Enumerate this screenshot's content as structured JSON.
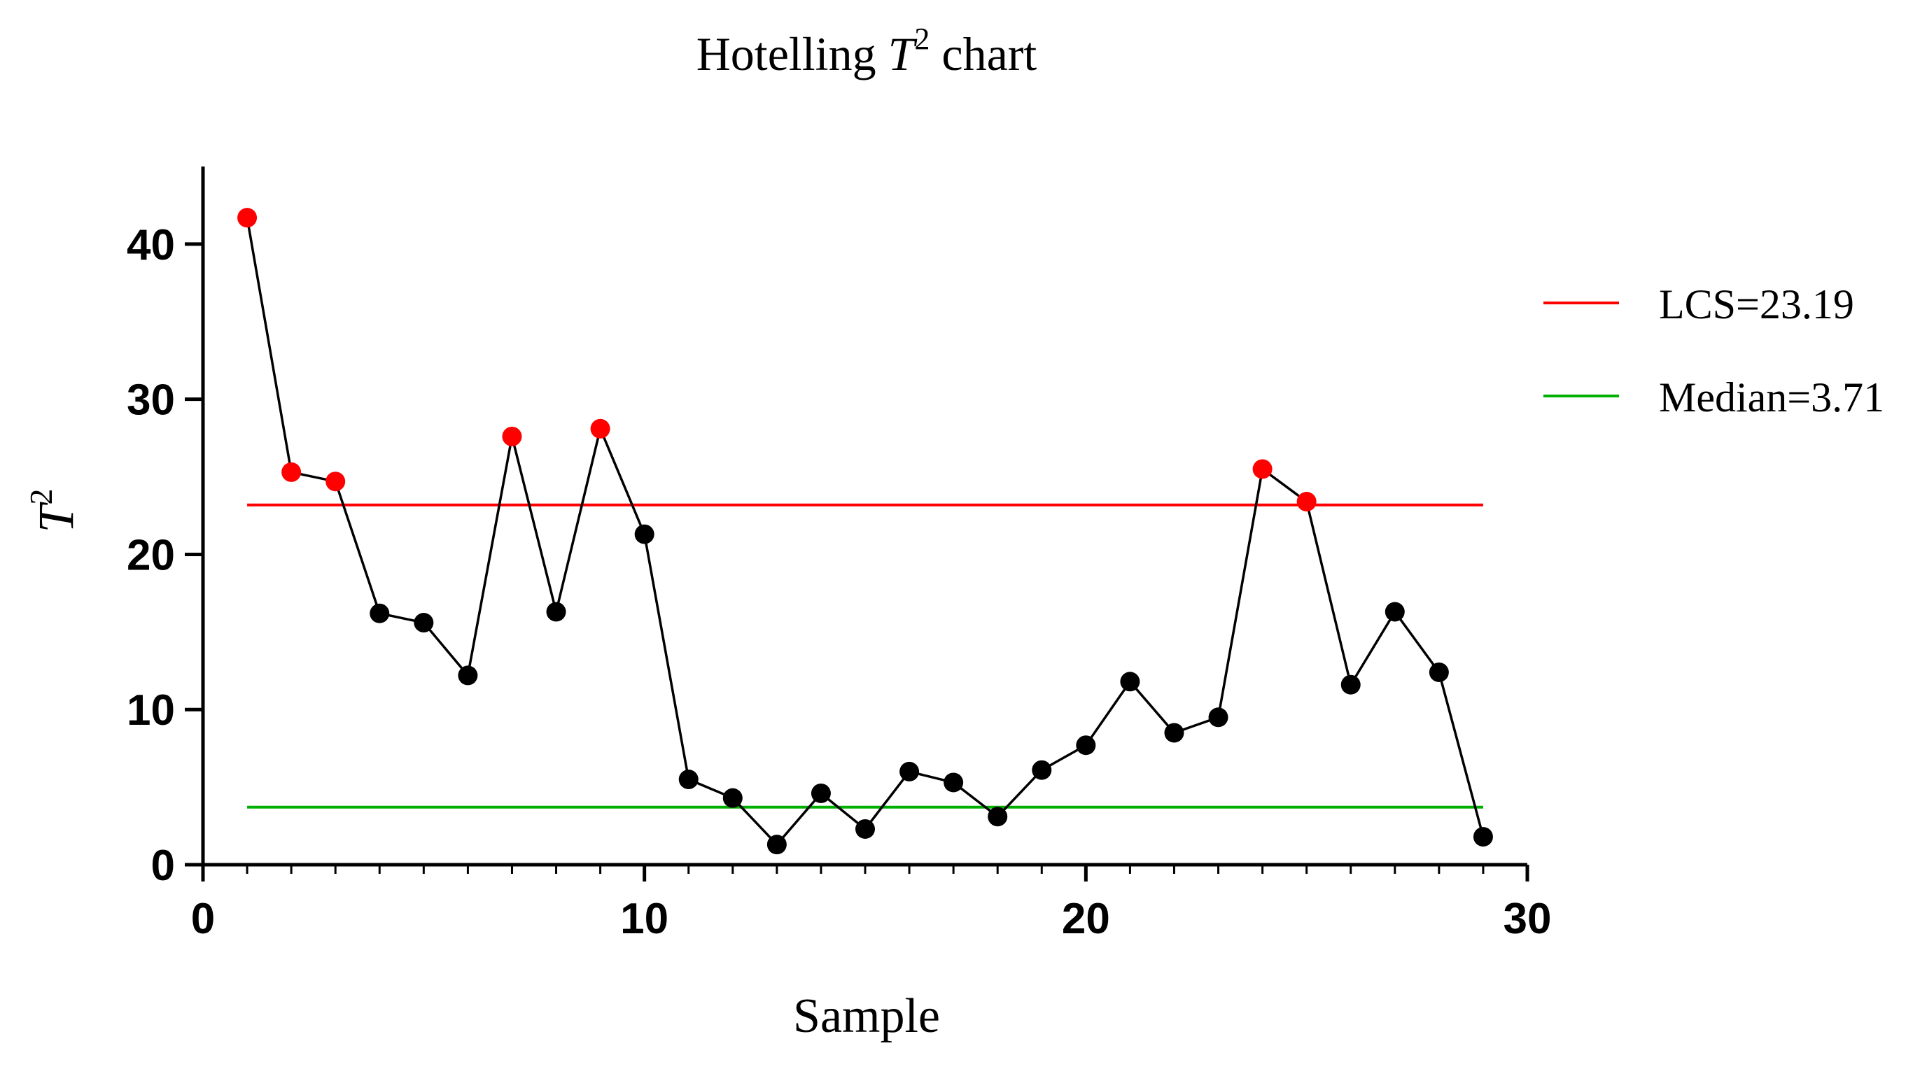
{
  "chart_data": {
    "type": "line",
    "title": {
      "prefix": "Hotelling ",
      "var": "T",
      "sup": "2",
      "suffix": " chart"
    },
    "xlabel": "Sample",
    "ylabel": {
      "var": "T",
      "sup": "2"
    },
    "xlim": [
      0,
      30
    ],
    "ylim": [
      0,
      45
    ],
    "xticks": [
      0,
      10,
      20,
      30
    ],
    "yticks": [
      0,
      10,
      20,
      30,
      40
    ],
    "grid": false,
    "legend_position": "right",
    "series": [
      {
        "x": [
          1,
          2,
          3,
          4,
          5,
          6,
          7,
          8,
          9,
          10,
          11,
          12,
          13,
          14,
          15,
          16,
          17,
          18,
          19,
          20,
          21,
          22,
          23,
          24,
          25,
          26,
          27,
          28,
          29
        ],
        "values": [
          41.7,
          25.3,
          24.7,
          16.2,
          15.6,
          12.2,
          27.6,
          16.3,
          28.1,
          21.3,
          5.5,
          4.3,
          1.3,
          4.6,
          2.3,
          6.0,
          5.3,
          3.1,
          6.1,
          7.7,
          11.8,
          8.5,
          9.5,
          25.5,
          23.4,
          11.6,
          16.3,
          12.4,
          1.8
        ],
        "line_color": "#000000",
        "marker_color": "#000000",
        "highlight_color": "#ff0000"
      }
    ],
    "reference_lines": [
      {
        "name": "LCS=23.19",
        "value": 23.19,
        "color": "#ff0000",
        "x_range": [
          1,
          29
        ]
      },
      {
        "name": "Median=3.71",
        "value": 3.71,
        "color": "#00b000",
        "x_range": [
          1,
          29
        ]
      }
    ]
  }
}
